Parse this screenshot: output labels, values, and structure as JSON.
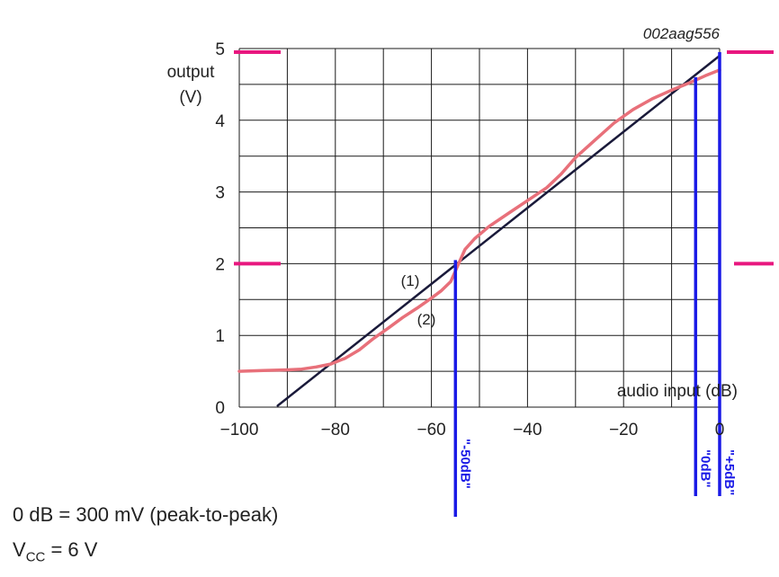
{
  "chart_data": {
    "type": "line",
    "figure_code": "002aag556",
    "ylabel_line1": "output",
    "ylabel_line2": "(V)",
    "xlabel": "audio input (dB)",
    "xlim": [
      -100,
      0
    ],
    "ylim": [
      0,
      5
    ],
    "x_ticks": [
      -100,
      -80,
      -60,
      -40,
      -20,
      0
    ],
    "x_tick_labels": [
      "−100",
      "−80",
      "−60",
      "−40",
      "−20",
      "0"
    ],
    "y_ticks": [
      0,
      1,
      2,
      3,
      4,
      5
    ],
    "y_tick_labels": [
      "0",
      "1",
      "2",
      "3",
      "4",
      "5"
    ],
    "grid": true,
    "grid_x_step": 10,
    "grid_y_step": 0.5,
    "series": [
      {
        "name": "(1)",
        "color": "#1a1a3a",
        "x": [
          -92,
          0
        ],
        "y": [
          0.02,
          4.9
        ]
      },
      {
        "name": "(2)",
        "color": "#e8707a",
        "x": [
          -100,
          -95,
          -90,
          -87,
          -84,
          -81,
          -78,
          -75,
          -72,
          -69,
          -66,
          -63,
          -60,
          -58,
          -56,
          -55,
          -54,
          -53,
          -51,
          -48,
          -44,
          -40,
          -36,
          -33,
          -30,
          -26,
          -22,
          -18,
          -14,
          -10,
          -6,
          -3,
          0
        ],
        "y": [
          0.5,
          0.51,
          0.52,
          0.53,
          0.56,
          0.6,
          0.68,
          0.8,
          0.96,
          1.1,
          1.25,
          1.38,
          1.52,
          1.62,
          1.75,
          1.9,
          2.05,
          2.2,
          2.35,
          2.52,
          2.7,
          2.88,
          3.06,
          3.25,
          3.48,
          3.72,
          3.96,
          4.15,
          4.3,
          4.42,
          4.53,
          4.62,
          4.7
        ]
      }
    ],
    "series_labels": [
      "(1)",
      "(2)"
    ],
    "markers": [
      {
        "x": -55,
        "label": "\"-50dB\"",
        "color": "#1a1ae6"
      },
      {
        "x": -5,
        "label": "\"0dB\"",
        "color": "#1a1ae6"
      },
      {
        "x": 0,
        "label": "\"+5dB\"",
        "color": "#1a1ae6"
      }
    ],
    "level_marks": [
      {
        "y": 4.95,
        "color": "#e8177f"
      },
      {
        "y": 2.0,
        "color": "#e8177f"
      }
    ]
  },
  "notes": {
    "zero_db": "0 dB = 300 mV (peak-to-peak)",
    "vcc_prefix": "V",
    "vcc_sub": "CC",
    "vcc_value": " = 6 V"
  }
}
